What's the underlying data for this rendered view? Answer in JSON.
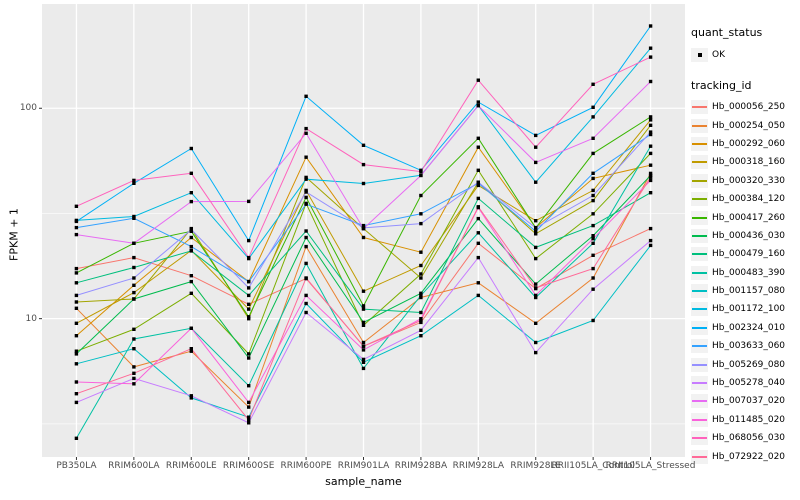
{
  "figure": {
    "background": "#FFFFFF",
    "panel_background": "#EBEBEB",
    "gridline_color": "#FFFFFF",
    "axis_text_color": "#4D4D4D",
    "tick_color": "#333333",
    "point_color": "#000000",
    "key_background": "#F2F2F2"
  },
  "legend": {
    "quant_status_title": "quant_status",
    "quant_status_entry": "OK",
    "tracking_id_title": "tracking_id"
  },
  "chart_data": {
    "type": "line",
    "title": "",
    "xlabel": "sample_name",
    "ylabel": "FPKM + 1",
    "y_scale": "log10",
    "ylim": [
      2.2,
      313
    ],
    "y_breaks": [
      100,
      10
    ],
    "y_minor_breaks": [
      3.162,
      31.62,
      316.2
    ],
    "grid": true,
    "legend_position": "right",
    "quant_status": "OK",
    "categories": [
      "PB350LA",
      "RRIM600LA",
      "RRIM600LE",
      "RRIM600SE",
      "RRIM600PE",
      "RRIM901LA",
      "RRIM928BA",
      "RRIM928LA",
      "RRIM928LE",
      "RRII105LA_Control",
      "RRII105LA_Stressed"
    ],
    "series": [
      {
        "name": "Hb_000056_250",
        "color": "#F8766D",
        "values": [
          17.3,
          19.5,
          16.0,
          11.7,
          15.5,
          7.4,
          9.6,
          22.8,
          13.9,
          20.0,
          26.8
        ]
      },
      {
        "name": "Hb_000254_050",
        "color": "#EA8331",
        "values": [
          11.2,
          5.9,
          7.0,
          3.8,
          22.0,
          7.7,
          12.6,
          14.8,
          9.5,
          15.6,
          49.0
        ]
      },
      {
        "name": "Hb_000292_060",
        "color": "#D89000",
        "values": [
          8.3,
          14.4,
          24.3,
          15.0,
          58.5,
          24.3,
          20.7,
          65.3,
          27.1,
          46.4,
          53.6
        ]
      },
      {
        "name": "Hb_000318_160",
        "color": "#C09B00",
        "values": [
          9.5,
          13.3,
          21.1,
          11.1,
          40.7,
          13.5,
          17.9,
          43.0,
          29.2,
          40.7,
          88.0
        ]
      },
      {
        "name": "Hb_000320_330",
        "color": "#A3A500",
        "values": [
          12.0,
          12.4,
          26.8,
          10.0,
          46.9,
          26.8,
          15.6,
          44.5,
          25.3,
          36.4,
          83.0
        ]
      },
      {
        "name": "Hb_000384_120",
        "color": "#7CAE00",
        "values": [
          7.0,
          8.9,
          13.2,
          6.8,
          35.3,
          9.3,
          16.3,
          50.7,
          19.3,
          31.5,
          61.0
        ]
      },
      {
        "name": "Hb_000417_260",
        "color": "#39B600",
        "values": [
          16.5,
          22.8,
          26.0,
          10.2,
          37.7,
          11.5,
          38.5,
          72.0,
          27.0,
          61.0,
          91.0
        ]
      },
      {
        "name": "Hb_000436_030",
        "color": "#00BB4E",
        "values": [
          6.8,
          12.4,
          15.0,
          6.5,
          24.3,
          9.6,
          13.2,
          29.9,
          14.6,
          24.8,
          47.9
        ]
      },
      {
        "name": "Hb_000479_160",
        "color": "#00BF7D",
        "values": [
          14.8,
          17.5,
          21.0,
          12.9,
          26.1,
          11.1,
          10.7,
          37.3,
          21.8,
          27.7,
          39.7
        ]
      },
      {
        "name": "Hb_000483_390",
        "color": "#00C1A3",
        "values": [
          2.7,
          8.0,
          9.0,
          4.8,
          18.3,
          5.8,
          12.9,
          25.6,
          12.6,
          22.8,
          66.0
        ]
      },
      {
        "name": "Hb_001157_080",
        "color": "#00BFC4",
        "values": [
          6.1,
          7.2,
          4.2,
          3.4,
          11.8,
          6.2,
          8.3,
          12.9,
          7.7,
          9.8,
          22.3
        ]
      },
      {
        "name": "Hb_001172_100",
        "color": "#00BAE0",
        "values": [
          29.3,
          30.6,
          39.7,
          19.3,
          46.0,
          43.9,
          48.0,
          103.0,
          44.5,
          91.0,
          193.0
        ]
      },
      {
        "name": "Hb_002324_010",
        "color": "#00B0F6",
        "values": [
          29.0,
          44.0,
          64.4,
          23.5,
          114.0,
          66.7,
          50.7,
          107.0,
          74.3,
          101.0,
          246.0
        ]
      },
      {
        "name": "Hb_003633_060",
        "color": "#35A2FF",
        "values": [
          27.1,
          30.0,
          22.0,
          15.0,
          35.0,
          27.7,
          31.5,
          44.0,
          26.0,
          49.1,
          75.0
        ]
      },
      {
        "name": "Hb_005269_080",
        "color": "#9590FF",
        "values": [
          12.9,
          15.6,
          26.5,
          14.0,
          40.0,
          27.0,
          28.3,
          44.5,
          27.0,
          38.5,
          77.0
        ]
      },
      {
        "name": "Hb_005278_040",
        "color": "#C77CFF",
        "values": [
          4.0,
          5.2,
          4.3,
          3.2,
          10.7,
          6.4,
          8.8,
          19.5,
          6.9,
          13.8,
          23.5
        ]
      },
      {
        "name": "Hb_007037_020",
        "color": "#E76BF3",
        "values": [
          25.1,
          22.8,
          36.0,
          36.1,
          76.0,
          26.8,
          47.9,
          103.0,
          55.3,
          72.0,
          134.0
        ]
      },
      {
        "name": "Hb_011485_020",
        "color": "#FA62DB",
        "values": [
          5.0,
          4.9,
          9.0,
          4.0,
          12.9,
          7.1,
          10.0,
          33.7,
          12.9,
          24.0,
          45.4
        ]
      },
      {
        "name": "Hb_068056_030",
        "color": "#FF62BC",
        "values": [
          34.2,
          45.4,
          49.1,
          19.5,
          80.0,
          54.0,
          50.0,
          136.0,
          65.3,
          130.0,
          175.0
        ]
      },
      {
        "name": "Hb_072922_020",
        "color": "#FF6A98",
        "values": [
          4.4,
          5.5,
          7.2,
          3.3,
          15.6,
          7.4,
          9.8,
          34.0,
          14.0,
          17.3,
          47.0
        ]
      }
    ]
  }
}
